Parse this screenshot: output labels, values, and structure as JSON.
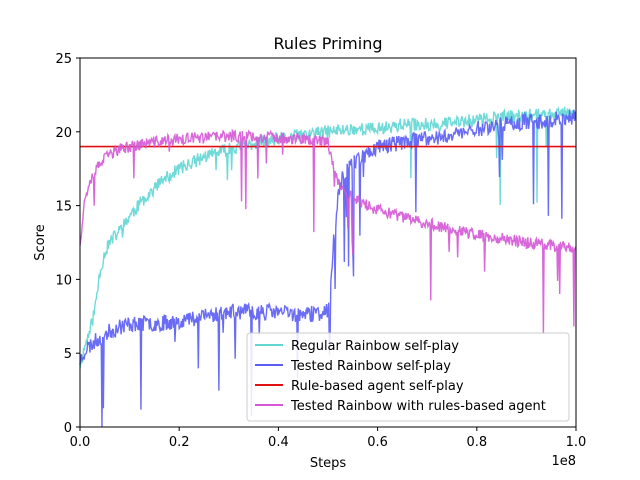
{
  "chart_data": {
    "type": "line",
    "title": "Rules Priming",
    "xlabel": "Steps",
    "ylabel": "Score",
    "x_multiplier_label": "1e8",
    "xlim": [
      0,
      1.0
    ],
    "ylim": [
      0,
      25
    ],
    "x_ticks": [
      "0.0",
      "0.2",
      "0.4",
      "0.6",
      "0.8",
      "1.0"
    ],
    "y_ticks": [
      "0",
      "5",
      "10",
      "15",
      "20",
      "25"
    ],
    "legend_position": "lower-right",
    "series": [
      {
        "name": "Regular Rainbow self-play",
        "color": "#5fd6d4",
        "x": [
          0,
          0.005,
          0.01,
          0.02,
          0.03,
          0.04,
          0.05,
          0.06,
          0.08,
          0.1,
          0.13,
          0.16,
          0.2,
          0.25,
          0.3,
          0.35,
          0.4,
          0.45,
          0.5,
          0.55,
          0.6,
          0.65,
          0.7,
          0.75,
          0.8,
          0.85,
          0.9,
          0.95,
          1.0
        ],
        "values": [
          4.2,
          4.8,
          5.5,
          6.5,
          8.0,
          10.5,
          11.8,
          12.5,
          13.3,
          14.3,
          15.5,
          16.5,
          17.5,
          18.3,
          18.8,
          19.2,
          19.5,
          19.8,
          20.0,
          20.2,
          20.2,
          20.5,
          20.5,
          20.6,
          20.8,
          21.0,
          21.1,
          21.2,
          21.3
        ]
      },
      {
        "name": "Tested Rainbow self-play",
        "color": "#5a5cf5",
        "x": [
          0,
          0.01,
          0.02,
          0.03,
          0.05,
          0.08,
          0.1,
          0.15,
          0.2,
          0.25,
          0.3,
          0.35,
          0.4,
          0.45,
          0.48,
          0.5,
          0.51,
          0.52,
          0.53,
          0.55,
          0.58,
          0.6,
          0.65,
          0.7,
          0.75,
          0.8,
          0.85,
          0.9,
          0.95,
          1.0
        ],
        "values": [
          4.5,
          5.2,
          5.5,
          5.8,
          6.3,
          6.8,
          7.0,
          7.0,
          7.2,
          7.5,
          7.8,
          7.8,
          7.8,
          7.6,
          7.7,
          7.8,
          12.0,
          15.5,
          17.0,
          18.0,
          18.5,
          19.0,
          19.3,
          19.5,
          19.8,
          20.2,
          20.5,
          20.7,
          20.8,
          21.0
        ]
      },
      {
        "name": "Rule-based agent self-play",
        "color": "#e01010",
        "x": [
          0,
          1.0
        ],
        "values": [
          19.0,
          19.0
        ]
      },
      {
        "name": "Tested Rainbow with rules-based agent",
        "color": "#d458d6",
        "x": [
          0,
          0.005,
          0.01,
          0.02,
          0.04,
          0.06,
          0.08,
          0.1,
          0.15,
          0.2,
          0.25,
          0.3,
          0.35,
          0.4,
          0.45,
          0.5,
          0.52,
          0.55,
          0.58,
          0.6,
          0.65,
          0.7,
          0.75,
          0.8,
          0.85,
          0.9,
          0.95,
          1.0
        ],
        "values": [
          12.5,
          14.0,
          15.5,
          16.8,
          17.8,
          18.5,
          18.8,
          19.0,
          19.3,
          19.5,
          19.6,
          19.7,
          19.7,
          19.6,
          19.5,
          19.3,
          16.5,
          15.5,
          15.0,
          14.7,
          14.2,
          13.8,
          13.4,
          13.0,
          12.8,
          12.5,
          12.3,
          12.2
        ]
      }
    ]
  }
}
